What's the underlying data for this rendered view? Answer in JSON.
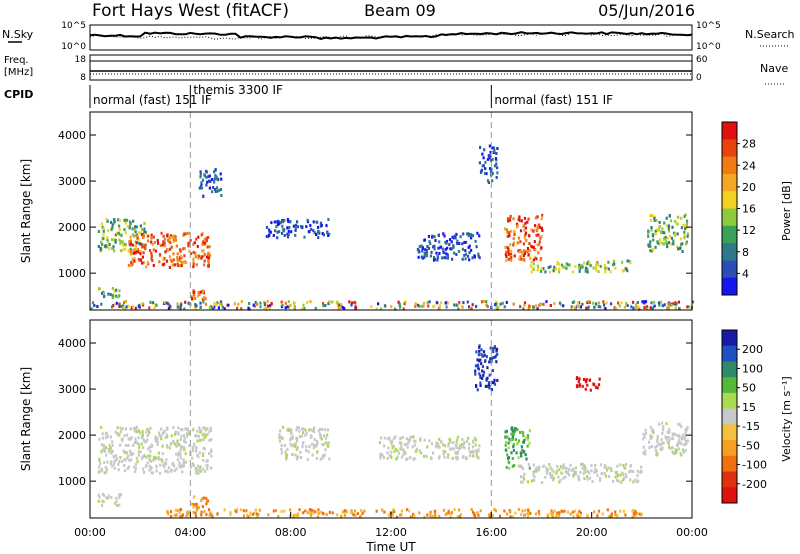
{
  "header": {
    "site": "Fort Hays West (fitACF)",
    "beam": "Beam 09",
    "date": "05/Jun/2016"
  },
  "noise_panel": {
    "left_label": "N.Sky",
    "left_ticks": [
      "10^5",
      "10^0"
    ],
    "right_label": "N.Search",
    "right_ticks": [
      "10^5",
      "10^0"
    ]
  },
  "freq_panel": {
    "left_label_1": "Freq.",
    "left_label_2": "[MHz]",
    "left_ticks": [
      "18",
      "8"
    ],
    "right_label": "Nave",
    "right_ticks": [
      "60",
      "0"
    ]
  },
  "cpid_panel": {
    "label": "CPID",
    "modes": [
      {
        "name": "normal (fast) 151 IF",
        "start_hour": 0
      },
      {
        "name": "themis 3300 IF",
        "start_hour": 4
      },
      {
        "name": "normal (fast) 151 IF",
        "start_hour": 16
      }
    ]
  },
  "time_axis": {
    "label": "Time UT",
    "ticks": [
      "00:00",
      "04:00",
      "08:00",
      "12:00",
      "16:00",
      "20:00",
      "00:00"
    ],
    "range_hours": [
      0,
      24
    ],
    "dashed_lines_hours": [
      4,
      16
    ]
  },
  "chart_data": [
    {
      "type": "heatmap",
      "title": "Power",
      "ylabel": "Slant Range [km]",
      "yticks": [
        1000,
        2000,
        3000,
        4000
      ],
      "ylim": [
        200,
        4500
      ],
      "colorbar": {
        "label": "Power [dB]",
        "ticks": [
          "28",
          "24",
          "20",
          "16",
          "12",
          "8",
          "4"
        ],
        "colors": [
          "#1515f0",
          "#2a4fb4",
          "#2f7a8a",
          "#3aa05a",
          "#8ccc3c",
          "#f2d21e",
          "#f5a623",
          "#f07a14",
          "#e8420f",
          "#e01010"
        ]
      },
      "regions": [
        {
          "t": [
            0.3,
            2.2
          ],
          "r": [
            1500,
            2200
          ],
          "level": "med"
        },
        {
          "t": [
            1.5,
            4.8
          ],
          "r": [
            1150,
            1900
          ],
          "level": "high"
        },
        {
          "t": [
            0.3,
            1.2
          ],
          "r": [
            500,
            700
          ],
          "level": "med"
        },
        {
          "t": [
            4.0,
            4.6
          ],
          "r": [
            450,
            650
          ],
          "level": "high"
        },
        {
          "t": [
            4.3,
            5.2
          ],
          "r": [
            2700,
            3300
          ],
          "level": "low"
        },
        {
          "t": [
            7.0,
            9.5
          ],
          "r": [
            1800,
            2200
          ],
          "level": "low"
        },
        {
          "t": [
            13.0,
            15.5
          ],
          "r": [
            1300,
            1900
          ],
          "level": "low"
        },
        {
          "t": [
            15.5,
            16.2
          ],
          "r": [
            3000,
            3800
          ],
          "level": "low"
        },
        {
          "t": [
            16.5,
            18.0
          ],
          "r": [
            1300,
            2300
          ],
          "level": "high"
        },
        {
          "t": [
            17.5,
            21.5
          ],
          "r": [
            1050,
            1300
          ],
          "level": "med"
        },
        {
          "t": [
            22.2,
            23.8
          ],
          "r": [
            1500,
            2300
          ],
          "level": "med"
        },
        {
          "t": [
            0.0,
            24.0
          ],
          "r": [
            250,
            420
          ],
          "level": "mixed"
        }
      ]
    },
    {
      "type": "heatmap",
      "title": "Velocity",
      "ylabel": "Slant Range [km]",
      "yticks": [
        1000,
        2000,
        3000,
        4000
      ],
      "ylim": [
        200,
        4500
      ],
      "colorbar": {
        "label": "Velocity [m s⁻¹]",
        "ticks": [
          "200",
          "100",
          "50",
          "15",
          "-15",
          "-50",
          "-100",
          "-200"
        ],
        "colors": [
          "#1a1aa8",
          "#2050c0",
          "#2f8a6a",
          "#55b83a",
          "#a8dc50",
          "#c8c8c8",
          "#f5c040",
          "#f5a020",
          "#f07010",
          "#e03010",
          "#e01010"
        ]
      },
      "regions": [
        {
          "t": [
            0.3,
            4.8
          ],
          "r": [
            1200,
            2200
          ],
          "level": "gray"
        },
        {
          "t": [
            0.3,
            1.2
          ],
          "r": [
            500,
            750
          ],
          "level": "gray"
        },
        {
          "t": [
            4.0,
            4.7
          ],
          "r": [
            450,
            700
          ],
          "level": "orange"
        },
        {
          "t": [
            7.5,
            9.5
          ],
          "r": [
            1500,
            2200
          ],
          "level": "gray"
        },
        {
          "t": [
            11.5,
            15.5
          ],
          "r": [
            1500,
            2000
          ],
          "level": "gray"
        },
        {
          "t": [
            15.3,
            16.2
          ],
          "r": [
            3000,
            4000
          ],
          "level": "blue"
        },
        {
          "t": [
            16.5,
            17.5
          ],
          "r": [
            1300,
            2200
          ],
          "level": "green"
        },
        {
          "t": [
            17.0,
            22.0
          ],
          "r": [
            1000,
            1400
          ],
          "level": "gray"
        },
        {
          "t": [
            19.3,
            20.3
          ],
          "r": [
            3000,
            3300
          ],
          "level": "red"
        },
        {
          "t": [
            22.0,
            23.8
          ],
          "r": [
            1600,
            2300
          ],
          "level": "gray"
        },
        {
          "t": [
            3.0,
            22.0
          ],
          "r": [
            250,
            420
          ],
          "level": "orange"
        }
      ]
    }
  ]
}
